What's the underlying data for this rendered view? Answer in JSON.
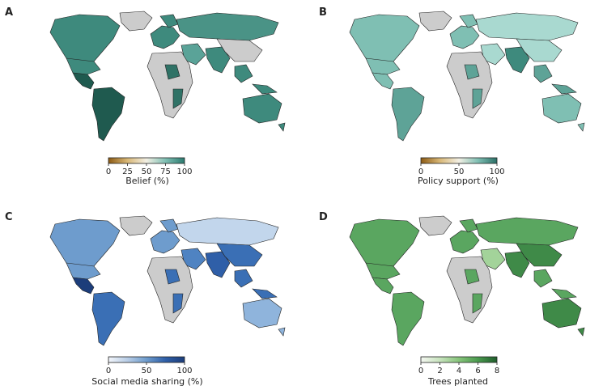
{
  "panels": [
    {
      "letter": "A",
      "colorbar_label": "Belief (%)",
      "ticks": [
        "0",
        "25",
        "50",
        "75",
        "100"
      ],
      "tick_values": [
        0,
        25,
        50,
        75,
        100
      ],
      "range": [
        0,
        100
      ],
      "gradient": [
        "#8c5a13",
        "#d9b877",
        "#f2efe4",
        "#7fbfb3",
        "#2a7a6f"
      ],
      "colors": {
        "northamerica": "#3e8a7d",
        "centralamerica": "#1f5a4f",
        "southamerica": "#1f5a4f",
        "europe": "#3e8a7d",
        "russia": "#4a9386",
        "africa": "#cccccc",
        "africa_hi": "#2f7266",
        "middleeast": "#5aa398",
        "southasia": "#3e8a7d",
        "eastasia": "#cccccc",
        "seasia": "#3e8a7d",
        "australia": "#3e8a7d",
        "greenland": "#cccccc"
      }
    },
    {
      "letter": "B",
      "colorbar_label": "Policy support (%)",
      "ticks": [
        "0",
        "50",
        "100"
      ],
      "tick_values": [
        0,
        50,
        100
      ],
      "range": [
        0,
        100
      ],
      "gradient": [
        "#8c5a13",
        "#d9b877",
        "#f2efe4",
        "#7fbfb3",
        "#2a6f66"
      ],
      "colors": {
        "northamerica": "#7fbfb3",
        "centralamerica": "#7fbfb3",
        "southamerica": "#5ea397",
        "europe": "#7fbfb3",
        "russia": "#a9d9d0",
        "africa": "#cccccc",
        "africa_hi": "#5ea397",
        "middleeast": "#a9d9d0",
        "southasia": "#3e8a7d",
        "eastasia": "#a9d9d0",
        "seasia": "#5ea397",
        "australia": "#7fbfb3",
        "greenland": "#cccccc"
      }
    },
    {
      "letter": "C",
      "colorbar_label": "Social media sharing (%)",
      "ticks": [
        "0",
        "50",
        "100"
      ],
      "tick_values": [
        0,
        50,
        100
      ],
      "range": [
        0,
        100
      ],
      "gradient": [
        "#f3f6fb",
        "#b8cde6",
        "#6e9ccd",
        "#2f5fa8",
        "#1c3d7a"
      ],
      "colors": {
        "northamerica": "#6e9ccd",
        "centralamerica": "#1c3d7a",
        "southamerica": "#3a6fb5",
        "europe": "#6e9ccd",
        "russia": "#c2d6ec",
        "africa": "#cccccc",
        "africa_hi": "#3a6fb5",
        "middleeast": "#4f83c2",
        "southasia": "#2f5fa8",
        "eastasia": "#3a6fb5",
        "seasia": "#3a6fb5",
        "australia": "#8fb4dc",
        "greenland": "#cccccc"
      }
    },
    {
      "letter": "D",
      "colorbar_label": "Trees planted",
      "ticks": [
        "0",
        "2",
        "4",
        "6",
        "8"
      ],
      "tick_values": [
        0,
        2,
        4,
        6,
        8
      ],
      "range": [
        0,
        8
      ],
      "gradient": [
        "#f4f7f1",
        "#c7e3bd",
        "#86c47a",
        "#4a9a4e",
        "#1f5d2c"
      ],
      "colors": {
        "northamerica": "#5aa660",
        "centralamerica": "#5aa660",
        "southamerica": "#5aa660",
        "europe": "#5aa660",
        "russia": "#5aa660",
        "africa": "#cccccc",
        "africa_hi": "#5aa660",
        "middleeast": "#a3d39a",
        "southasia": "#3f8a48",
        "eastasia": "#3f8a48",
        "seasia": "#5aa660",
        "australia": "#3f8a48",
        "greenland": "#cccccc"
      }
    }
  ]
}
